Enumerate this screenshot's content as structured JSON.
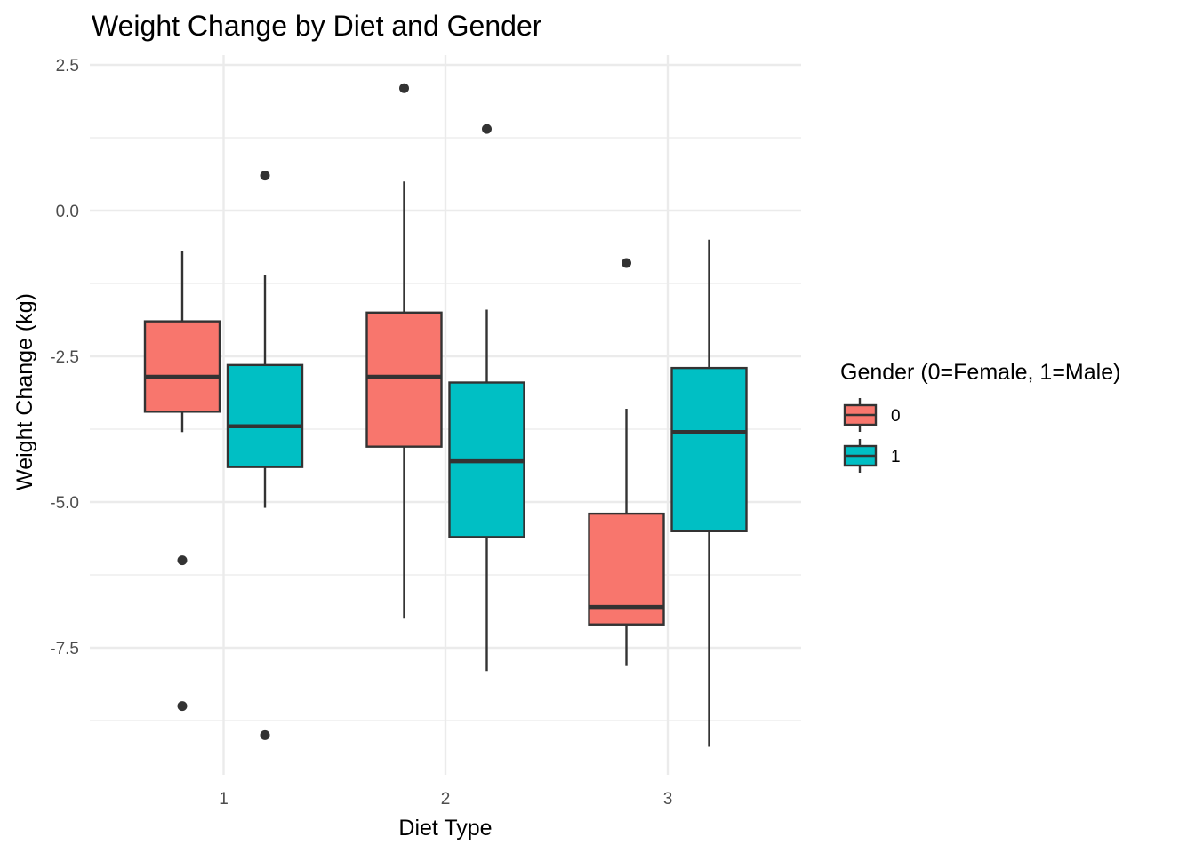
{
  "chart_data": {
    "type": "boxplot",
    "title": "Weight Change by Diet and Gender",
    "xlabel": "Diet Type",
    "ylabel": "Weight Change (kg)",
    "categories": [
      "1",
      "2",
      "3"
    ],
    "y_ticks": [
      2.5,
      0.0,
      -2.5,
      -5.0,
      -7.5
    ],
    "y_tick_labels": [
      "2.5",
      "0.0",
      "-2.5",
      "-5.0",
      "-7.5"
    ],
    "ylim": [
      -9.6,
      2.5
    ],
    "grid": true,
    "legend": {
      "title": "Gender (0=Female, 1=Male)",
      "position": "right",
      "entries": [
        {
          "label": "0",
          "color": "#F8766D"
        },
        {
          "label": "1",
          "color": "#00BFC4"
        }
      ]
    },
    "series": [
      {
        "name": "0",
        "color": "#F8766D",
        "boxes": [
          {
            "category": "1",
            "whisker_low": -3.8,
            "q1": -3.45,
            "median": -2.85,
            "q3": -1.9,
            "whisker_high": -0.7,
            "outliers": [
              -6.0,
              -8.5
            ]
          },
          {
            "category": "2",
            "whisker_low": -7.0,
            "q1": -4.05,
            "median": -2.85,
            "q3": -1.75,
            "whisker_high": 0.5,
            "outliers": [
              2.1
            ]
          },
          {
            "category": "3",
            "whisker_low": -7.8,
            "q1": -7.1,
            "median": -6.8,
            "q3": -5.2,
            "whisker_high": -3.4,
            "outliers": [
              -0.9
            ]
          }
        ]
      },
      {
        "name": "1",
        "color": "#00BFC4",
        "boxes": [
          {
            "category": "1",
            "whisker_low": -5.1,
            "q1": -4.4,
            "median": -3.7,
            "q3": -2.65,
            "whisker_high": -1.1,
            "outliers": [
              0.6,
              -9.0
            ]
          },
          {
            "category": "2",
            "whisker_low": -7.9,
            "q1": -5.6,
            "median": -4.3,
            "q3": -2.95,
            "whisker_high": -1.7,
            "outliers": [
              1.4
            ]
          },
          {
            "category": "3",
            "whisker_low": -9.2,
            "q1": -5.5,
            "median": -3.8,
            "q3": -2.7,
            "whisker_high": -0.5,
            "outliers": []
          }
        ]
      }
    ]
  }
}
